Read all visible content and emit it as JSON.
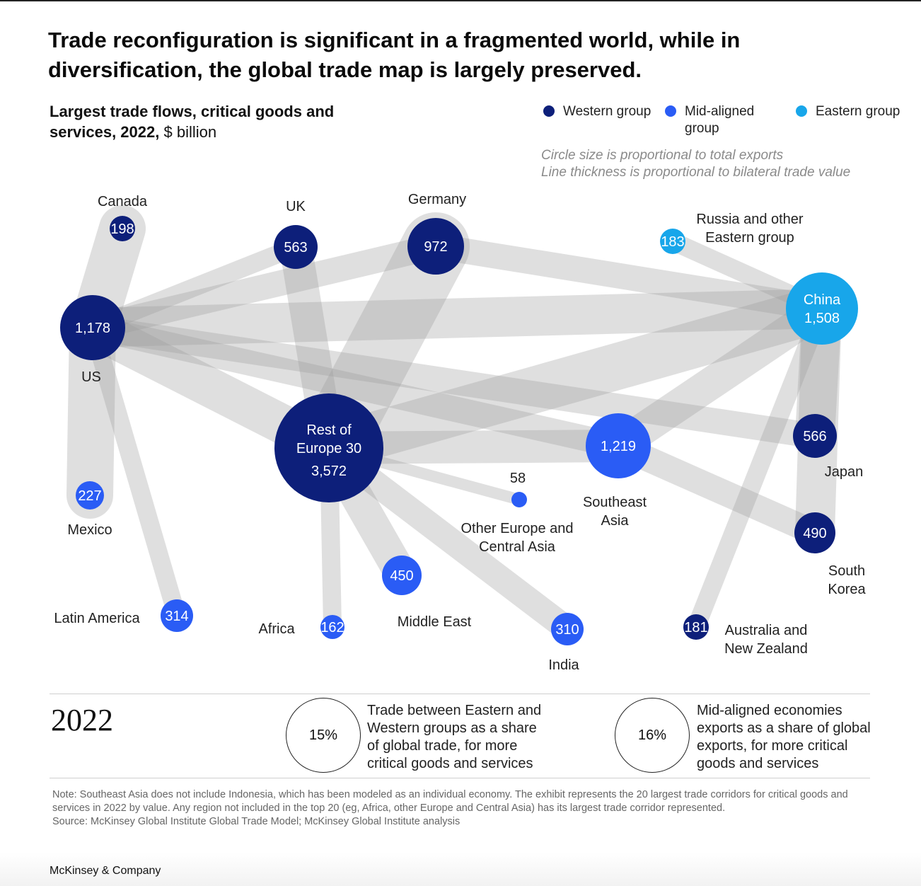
{
  "headline": "Trade reconfiguration is significant in a fragmented world, while in diversification, the global trade map is largely preserved.",
  "chart_title": {
    "bold": "Largest trade flows, critical goods and services, 2022,",
    "unit": "$ billion"
  },
  "legend": {
    "groups": [
      {
        "label": "Western group",
        "color": "#0d1f7a"
      },
      {
        "label": "Mid-aligned group",
        "color": "#2a5cf5"
      },
      {
        "label": "Eastern group",
        "color": "#18a6ea"
      }
    ],
    "notes": [
      "Circle size is proportional to total exports",
      "Line thickness is proportional to bilateral trade value"
    ]
  },
  "chart_data": {
    "type": "network",
    "nodes": [
      {
        "id": "canada",
        "name": "Canada",
        "value": 198,
        "group": "Western group"
      },
      {
        "id": "uk",
        "name": "UK",
        "value": 563,
        "group": "Western group"
      },
      {
        "id": "germany",
        "name": "Germany",
        "value": 972,
        "group": "Western group"
      },
      {
        "id": "russia",
        "name": "Russia and other Eastern group",
        "value": 183,
        "group": "Eastern group"
      },
      {
        "id": "us",
        "name": "US",
        "value": 1178,
        "value_label": "1,178",
        "group": "Western group"
      },
      {
        "id": "china",
        "name": "China",
        "value": 1508,
        "value_label": "1,508",
        "group": "Eastern group"
      },
      {
        "id": "roe",
        "name": "Rest of Europe 30",
        "value": 3572,
        "value_label": "3,572",
        "group": "Western group"
      },
      {
        "id": "sea",
        "name": "Southeast Asia",
        "value": 1219,
        "value_label": "1,219",
        "group": "Mid-aligned group"
      },
      {
        "id": "japan",
        "name": "Japan",
        "value": 566,
        "group": "Western group"
      },
      {
        "id": "mexico",
        "name": "Mexico",
        "value": 227,
        "group": "Mid-aligned group"
      },
      {
        "id": "oeca",
        "name": "Other Europe and Central Asia",
        "value": 58,
        "group": "Mid-aligned group"
      },
      {
        "id": "korea",
        "name": "South Korea",
        "value": 490,
        "group": "Western group"
      },
      {
        "id": "mideast",
        "name": "Middle East",
        "value": 450,
        "group": "Mid-aligned group"
      },
      {
        "id": "latam",
        "name": "Latin America",
        "value": 314,
        "group": "Mid-aligned group"
      },
      {
        "id": "africa",
        "name": "Africa",
        "value": 162,
        "group": "Mid-aligned group"
      },
      {
        "id": "india",
        "name": "India",
        "value": 310,
        "group": "Mid-aligned group"
      },
      {
        "id": "anz",
        "name": "Australia and New Zealand",
        "value": 181,
        "group": "Western group"
      }
    ],
    "links": [
      {
        "source": "germany",
        "target": "roe",
        "weight": 9
      },
      {
        "source": "us",
        "target": "canada",
        "weight": 6
      },
      {
        "source": "us",
        "target": "mexico",
        "weight": 6
      },
      {
        "source": "roe",
        "target": "china",
        "weight": 6
      },
      {
        "source": "us",
        "target": "china",
        "weight": 5
      },
      {
        "source": "us",
        "target": "roe",
        "weight": 5
      },
      {
        "source": "china",
        "target": "japan",
        "weight": 5
      },
      {
        "source": "china",
        "target": "korea",
        "weight": 5
      },
      {
        "source": "roe",
        "target": "mideast",
        "weight": 4
      },
      {
        "source": "roe",
        "target": "sea",
        "weight": 4
      },
      {
        "source": "china",
        "target": "sea",
        "weight": 4
      },
      {
        "source": "uk",
        "target": "roe",
        "weight": 4
      },
      {
        "source": "us",
        "target": "japan",
        "weight": 3
      },
      {
        "source": "sea",
        "target": "korea",
        "weight": 3
      },
      {
        "source": "germany",
        "target": "china",
        "weight": 3
      },
      {
        "source": "us",
        "target": "germany",
        "weight": 3
      },
      {
        "source": "us",
        "target": "sea",
        "weight": 3
      },
      {
        "source": "roe",
        "target": "india",
        "weight": 3
      },
      {
        "source": "us",
        "target": "uk",
        "weight": 2
      },
      {
        "source": "russia",
        "target": "china",
        "weight": 2
      },
      {
        "source": "us",
        "target": "latam",
        "weight": 2
      },
      {
        "source": "china",
        "target": "anz",
        "weight": 2
      },
      {
        "source": "roe",
        "target": "africa",
        "weight": 2
      },
      {
        "source": "roe",
        "target": "oeca",
        "weight": 1
      }
    ]
  },
  "summary": {
    "year": "2022",
    "stats": [
      {
        "value": "15%",
        "text": "Trade between Eastern and Western groups as a share of global trade, for more critical goods and services"
      },
      {
        "value": "16%",
        "text": "Mid-aligned economies exports as a share of global exports, for more critical goods and services"
      }
    ]
  },
  "note": "Note: Southeast Asia does not include Indonesia, which has been modeled as an individual economy. The exhibit represents the 20 largest trade corridors for critical goods and services in 2022 by value. Any region not included in the top 20 (eg, Africa, other Europe and Central Asia) has its largest trade corridor represented.",
  "source": "Source: McKinsey Global Institute Global Trade Model; McKinsey Global Institute analysis",
  "brand": "McKinsey & Company"
}
